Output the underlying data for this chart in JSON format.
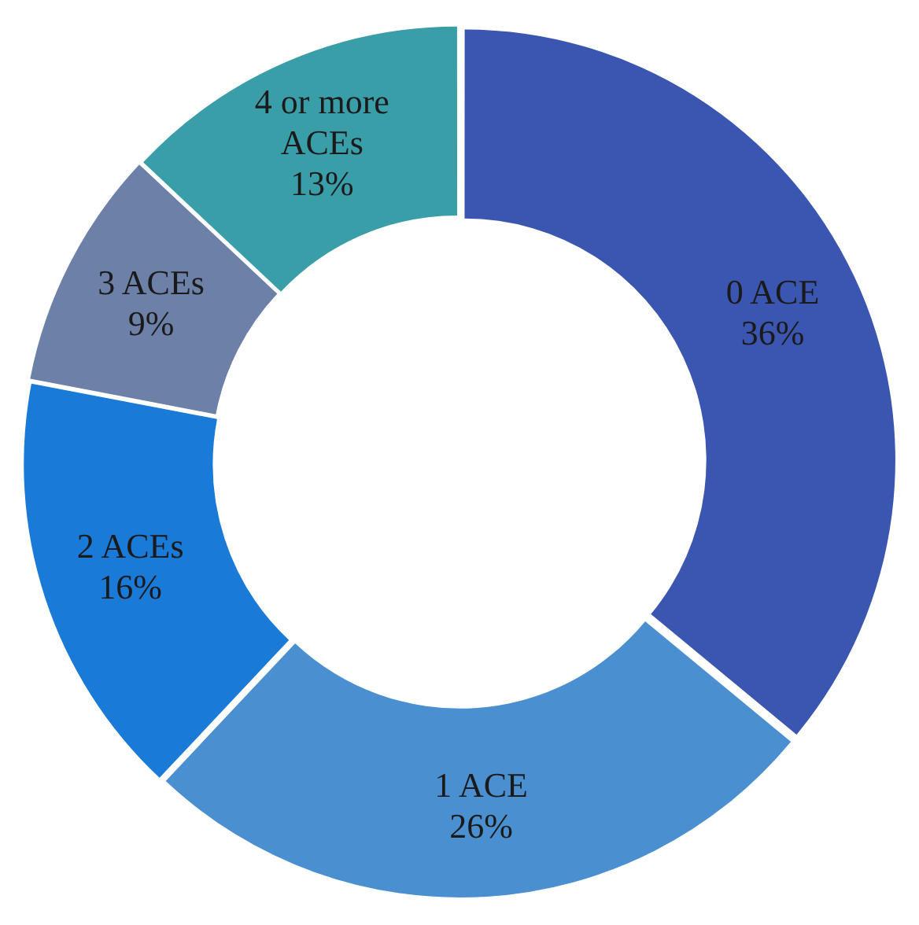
{
  "chart_data": {
    "type": "donut",
    "categories": [
      "0 ACE",
      "1 ACE",
      "2 ACEs",
      "3 ACEs",
      "4 or more ACEs"
    ],
    "values": [
      36,
      26,
      16,
      9,
      13
    ],
    "value_labels": [
      "36%",
      "26%",
      "16%",
      "9%",
      "13%"
    ],
    "colors": [
      "#3a56b0",
      "#4a90d0",
      "#1a7ad8",
      "#6c80a8",
      "#3a9ea8"
    ],
    "legend": false
  }
}
